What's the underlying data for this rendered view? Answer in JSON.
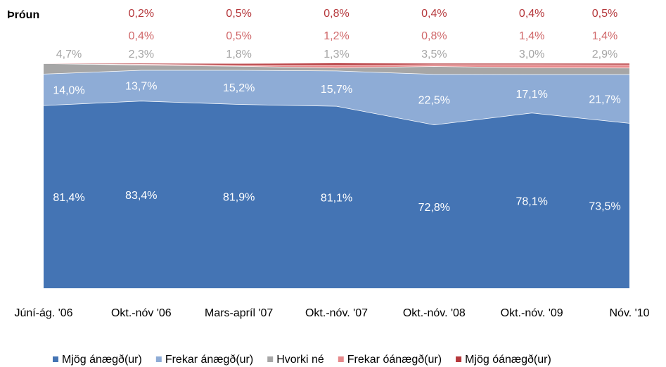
{
  "chart_data": {
    "type": "stacked-area",
    "title": "Þróun",
    "categories": [
      "Júní-ág. '06",
      "Okt.-nóv '06",
      "Mars-apríl '07",
      "Okt.-nóv. '07",
      "Okt.-nóv. '08",
      "Okt.-nóv. '09",
      "Nóv. '10"
    ],
    "series": [
      {
        "name": "Mjög ánægð(ur)",
        "color": "#4474b4",
        "label_color": "#ffffff",
        "values": [
          81.4,
          83.4,
          81.9,
          81.1,
          72.8,
          78.1,
          73.5
        ],
        "value_labels": [
          "81,4%",
          "83,4%",
          "81,9%",
          "81,1%",
          "72,8%",
          "78,1%",
          "73,5%"
        ]
      },
      {
        "name": "Frekar ánægð(ur)",
        "color": "#8eacd6",
        "label_color": "#ffffff",
        "values": [
          14.0,
          13.7,
          15.2,
          15.7,
          22.5,
          17.1,
          21.7
        ],
        "value_labels": [
          "14,0%",
          "13,7%",
          "15,2%",
          "15,7%",
          "22,5%",
          "17,1%",
          "21,7%"
        ]
      },
      {
        "name": "Hvorki né",
        "color": "#a6a6a6",
        "label_color": "#a6a6a6",
        "values": [
          4.7,
          2.3,
          1.8,
          1.3,
          3.5,
          3.0,
          2.9
        ],
        "value_labels": [
          "4,7%",
          "2,3%",
          "1,8%",
          "1,3%",
          "3,5%",
          "3,0%",
          "2,9%"
        ]
      },
      {
        "name": "Frekar óánægð(ur)",
        "color": "#e6898b",
        "label_color": "#d0686a",
        "values": [
          0,
          0.4,
          0.5,
          1.2,
          0.8,
          1.4,
          1.4
        ],
        "value_labels": [
          null,
          "0,4%",
          "0,5%",
          "1,2%",
          "0,8%",
          "1,4%",
          "1,4%"
        ]
      },
      {
        "name": "Mjög óánægð(ur)",
        "color": "#b5373b",
        "label_color": "#b5373b",
        "values": [
          0,
          0.2,
          0.5,
          0.8,
          0.4,
          0.4,
          0.5
        ],
        "value_labels": [
          null,
          "0,2%",
          "0,5%",
          "0,8%",
          "0,4%",
          "0,4%",
          "0,5%"
        ]
      }
    ]
  }
}
